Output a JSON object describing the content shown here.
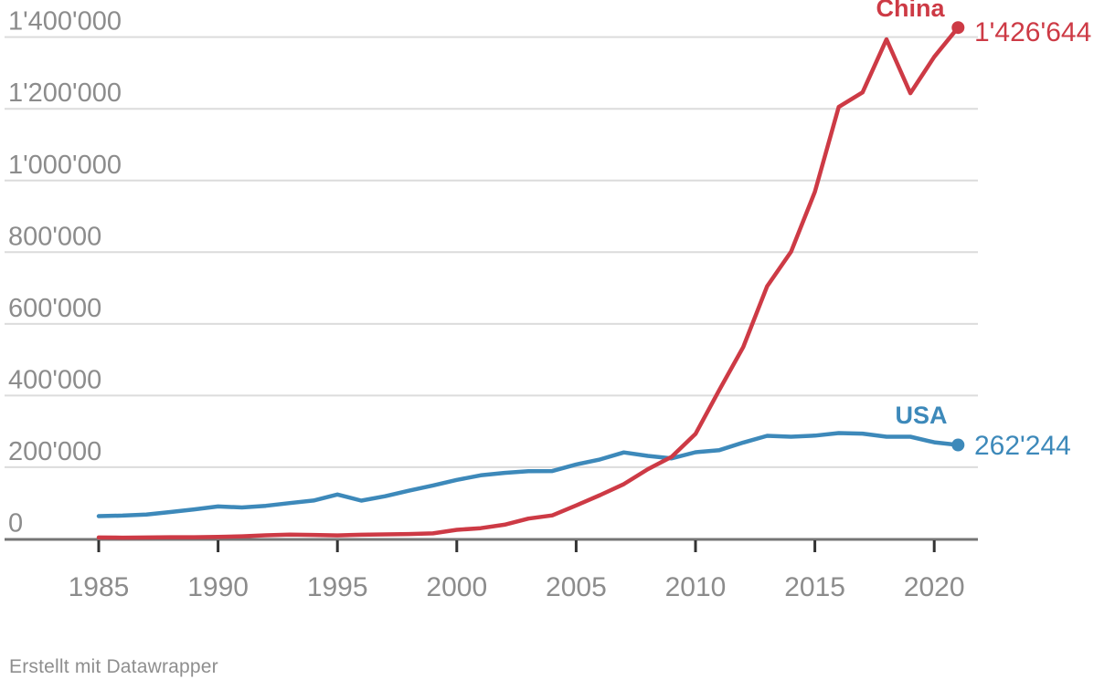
{
  "chart_data": {
    "type": "line",
    "title": "",
    "xlabel": "",
    "ylabel": "",
    "xlim": [
      1985,
      2021
    ],
    "ylim": [
      0,
      1426644
    ],
    "grid": true,
    "legend_position": "direct-labels-on-lines",
    "years": [
      1985,
      1986,
      1987,
      1988,
      1989,
      1990,
      1991,
      1992,
      1993,
      1994,
      1995,
      1996,
      1997,
      1998,
      1999,
      2000,
      2001,
      2002,
      2003,
      2004,
      2005,
      2006,
      2007,
      2008,
      2009,
      2010,
      2011,
      2012,
      2013,
      2014,
      2015,
      2016,
      2017,
      2018,
      2019,
      2020,
      2021
    ],
    "x_ticks": [
      1985,
      1990,
      1995,
      2000,
      2005,
      2010,
      2015,
      2020
    ],
    "y_ticks": [
      {
        "value": 0,
        "label": "0"
      },
      {
        "value": 200000,
        "label": "200'000"
      },
      {
        "value": 400000,
        "label": "400'000"
      },
      {
        "value": 600000,
        "label": "600'000"
      },
      {
        "value": 800000,
        "label": "800'000"
      },
      {
        "value": 1000000,
        "label": "1'000'000"
      },
      {
        "value": 1200000,
        "label": "1'200'000"
      },
      {
        "value": 1400000,
        "label": "1'400'000"
      }
    ],
    "series": [
      {
        "name": "China",
        "color": "#cd3a45",
        "end_label": "1'426'644",
        "end_value": 1426644,
        "values": [
          4065,
          3494,
          3975,
          4780,
          4749,
          5832,
          7372,
          10212,
          12084,
          11191,
          10018,
          11628,
          12672,
          13726,
          15626,
          25346,
          30038,
          39806,
          56769,
          65786,
          93485,
          122318,
          153060,
          194579,
          229096,
          293066,
          415829,
          535313,
          704936,
          801135,
          968252,
          1204981,
          1245709,
          1393815,
          1243568,
          1344817,
          1426644
        ]
      },
      {
        "name": "USA",
        "color": "#3d89ba",
        "end_label": "262'244",
        "end_value": 262244,
        "values": [
          63673,
          65195,
          68315,
          75192,
          82370,
          90643,
          87955,
          92425,
          99955,
          107233,
          123962,
          106892,
          119214,
          134733,
          149251,
          164795,
          177511,
          184245,
          188941,
          189536,
          207867,
          221784,
          241347,
          231588,
          224912,
          241977,
          247750,
          268782,
          287831,
          285096,
          288335,
          295327,
          293904,
          285095,
          285113,
          269586,
          262244
        ]
      }
    ]
  },
  "colors": {
    "china_line": "#cd3a45",
    "usa_line": "#3d89ba",
    "gridline": "#dcdcdc",
    "axis_line": "#757575",
    "tick_mark": "#333333",
    "tick_text": "#8c8c8c",
    "credit_text": "#8e8e8e",
    "background": "#ffffff"
  },
  "footer": {
    "credit": "Erstellt mit Datawrapper"
  }
}
